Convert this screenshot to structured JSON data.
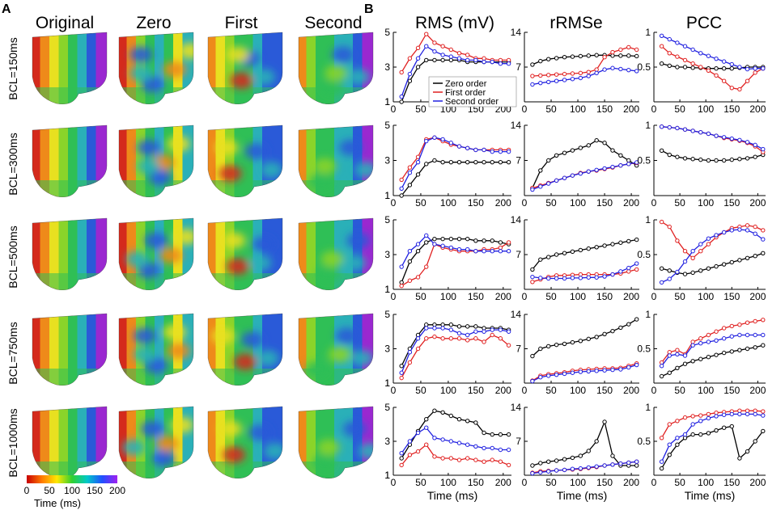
{
  "panel_labels": {
    "a": "A",
    "b": "B"
  },
  "map_columns": [
    "Original",
    "Zero",
    "First",
    "Second"
  ],
  "bcl_rows": [
    "BCL=150ms",
    "BCL=300ms",
    "BCL=500ms",
    "BCL=750ms",
    "BCL=1000ms"
  ],
  "colorbar": {
    "ticks": [
      "0",
      "50",
      "100",
      "150",
      "200"
    ],
    "title": "Time (ms)",
    "colors": [
      "#c80000",
      "#ff7a00",
      "#ffe800",
      "#30d030",
      "#00c8c8",
      "#2050ff",
      "#a020f0"
    ]
  },
  "map_palette": {
    "red": "#d42a1c",
    "orange": "#ee8a1a",
    "yellow": "#e8e020",
    "lime": "#8ad42a",
    "green": "#2fbf56",
    "cyan": "#2ab0b8",
    "blue": "#2a5ad8",
    "purple": "#9a28d0"
  },
  "legend": {
    "zero": "Zero order",
    "first": "First order",
    "second": "Second order"
  },
  "series_colors": {
    "zero": "#000000",
    "first": "#e02020",
    "second": "#2020e0"
  },
  "chart_data": {
    "type": "line",
    "column_titles": [
      "RMS (mV)",
      "rRMSe",
      "PCC"
    ],
    "xlabel": "Time (ms)",
    "x": [
      15,
      30,
      45,
      60,
      75,
      90,
      105,
      120,
      135,
      150,
      165,
      180,
      195,
      210
    ],
    "x_ticks": [
      0,
      50,
      100,
      150,
      200
    ],
    "xlim": [
      0,
      215
    ],
    "columns": [
      {
        "name": "RMS (mV)",
        "ylim": [
          1,
          5
        ],
        "yticks": [
          1,
          3,
          5
        ],
        "ytick_labels": [
          "1",
          "3",
          "5"
        ]
      },
      {
        "name": "rRMSe",
        "ylim": [
          0,
          14
        ],
        "yticks": [
          7,
          14
        ],
        "ytick_labels": [
          "7",
          "14"
        ]
      },
      {
        "name": "PCC",
        "ylim": [
          0,
          1
        ],
        "yticks": [
          0.5,
          1
        ],
        "ytick_labels": [
          "0.5",
          "1"
        ]
      }
    ],
    "rows": [
      {
        "bcl": "BCL=150ms",
        "rms": {
          "zero": [
            1.0,
            2.2,
            3.0,
            3.4,
            3.4,
            3.4,
            3.4,
            3.4,
            3.3,
            3.3,
            3.3,
            3.3,
            3.3,
            3.3
          ],
          "first": [
            2.7,
            3.5,
            4.1,
            4.9,
            4.4,
            4.2,
            4.0,
            3.8,
            3.7,
            3.5,
            3.5,
            3.4,
            3.4,
            3.4
          ],
          "second": [
            1.3,
            2.6,
            3.5,
            4.2,
            3.9,
            3.7,
            3.6,
            3.5,
            3.4,
            3.4,
            3.3,
            3.3,
            3.2,
            3.2
          ]
        },
        "rrmse": {
          "zero": [
            7.5,
            8.2,
            8.6,
            8.8,
            9.0,
            9.1,
            9.2,
            9.3,
            9.4,
            9.4,
            9.3,
            9.3,
            9.3,
            9.2
          ],
          "first": [
            5.2,
            5.3,
            5.4,
            5.5,
            5.6,
            5.7,
            5.8,
            6.0,
            6.5,
            9.0,
            10.0,
            10.5,
            11.0,
            10.5
          ],
          "second": [
            3.5,
            3.8,
            4.0,
            4.2,
            4.4,
            4.6,
            4.8,
            5.2,
            5.8,
            6.5,
            6.8,
            6.6,
            6.4,
            6.2
          ]
        },
        "pcc": {
          "zero": [
            0.55,
            0.52,
            0.5,
            0.5,
            0.49,
            0.49,
            0.48,
            0.48,
            0.48,
            0.48,
            0.49,
            0.5,
            0.5,
            0.5
          ],
          "first": [
            0.8,
            0.7,
            0.65,
            0.6,
            0.55,
            0.5,
            0.45,
            0.38,
            0.3,
            0.2,
            0.18,
            0.3,
            0.42,
            0.48
          ],
          "second": [
            0.95,
            0.9,
            0.85,
            0.8,
            0.75,
            0.7,
            0.66,
            0.62,
            0.58,
            0.54,
            0.5,
            0.47,
            0.48,
            0.48
          ]
        }
      },
      {
        "bcl": "BCL=300ms",
        "rms": {
          "zero": [
            1.0,
            1.6,
            2.2,
            2.8,
            3.0,
            2.9,
            2.9,
            2.9,
            2.9,
            2.9,
            2.9,
            2.9,
            2.9,
            2.9
          ],
          "first": [
            1.9,
            2.6,
            3.2,
            4.2,
            4.3,
            4.1,
            3.9,
            3.8,
            3.7,
            3.6,
            3.6,
            3.6,
            3.6,
            3.6
          ],
          "second": [
            1.4,
            2.3,
            2.9,
            4.1,
            4.3,
            4.2,
            4.0,
            3.8,
            3.7,
            3.6,
            3.6,
            3.5,
            3.5,
            3.5
          ]
        },
        "rrmse": {
          "zero": [
            1.5,
            5.0,
            7.0,
            8.0,
            8.5,
            9.0,
            9.5,
            10.0,
            11.0,
            10.5,
            9.0,
            8.0,
            7.0,
            6.0
          ],
          "first": [
            1.5,
            2.0,
            2.5,
            3.0,
            3.5,
            4.0,
            4.5,
            4.8,
            5.0,
            5.3,
            5.6,
            6.0,
            6.3,
            6.5
          ],
          "second": [
            1.2,
            1.8,
            2.4,
            3.0,
            3.5,
            4.0,
            4.4,
            4.8,
            5.1,
            5.4,
            5.7,
            6.0,
            6.3,
            6.6
          ]
        },
        "pcc": {
          "zero": [
            0.64,
            0.58,
            0.55,
            0.53,
            0.52,
            0.51,
            0.5,
            0.5,
            0.5,
            0.51,
            0.52,
            0.53,
            0.55,
            0.58
          ],
          "first": [
            0.98,
            0.97,
            0.96,
            0.94,
            0.92,
            0.9,
            0.88,
            0.85,
            0.82,
            0.8,
            0.78,
            0.75,
            0.7,
            0.62
          ],
          "second": [
            0.98,
            0.97,
            0.96,
            0.94,
            0.92,
            0.9,
            0.88,
            0.85,
            0.83,
            0.81,
            0.79,
            0.76,
            0.72,
            0.66
          ]
        }
      },
      {
        "bcl": "BCL=500ms",
        "rms": {
          "zero": [
            1.4,
            2.6,
            3.2,
            3.7,
            3.9,
            3.9,
            3.9,
            3.9,
            3.9,
            3.8,
            3.8,
            3.8,
            3.7,
            3.6
          ],
          "first": [
            1.2,
            1.5,
            1.7,
            2.3,
            3.6,
            3.4,
            3.3,
            3.2,
            3.2,
            3.2,
            3.3,
            3.3,
            3.4,
            3.7
          ],
          "second": [
            2.3,
            3.2,
            3.6,
            4.1,
            3.6,
            3.5,
            3.4,
            3.3,
            3.3,
            3.2,
            3.2,
            3.2,
            3.2,
            3.2
          ]
        },
        "rrmse": {
          "zero": [
            4.0,
            6.0,
            6.5,
            7.0,
            7.3,
            7.6,
            7.9,
            8.2,
            8.5,
            8.8,
            9.1,
            9.4,
            9.7,
            10.0
          ],
          "first": [
            1.5,
            2.0,
            2.5,
            2.8,
            2.8,
            2.9,
            3.0,
            3.0,
            3.0,
            3.0,
            3.0,
            3.2,
            3.6,
            4.0
          ],
          "second": [
            2.5,
            2.3,
            2.2,
            2.2,
            2.2,
            2.3,
            2.3,
            2.4,
            2.4,
            2.6,
            3.0,
            3.6,
            4.3,
            5.2
          ]
        },
        "pcc": {
          "zero": [
            0.3,
            0.27,
            0.24,
            0.22,
            0.24,
            0.27,
            0.3,
            0.33,
            0.36,
            0.39,
            0.42,
            0.45,
            0.48,
            0.52
          ],
          "first": [
            0.97,
            0.9,
            0.7,
            0.55,
            0.45,
            0.55,
            0.65,
            0.75,
            0.82,
            0.88,
            0.9,
            0.92,
            0.9,
            0.85
          ],
          "second": [
            0.1,
            0.15,
            0.25,
            0.4,
            0.55,
            0.65,
            0.73,
            0.78,
            0.82,
            0.85,
            0.86,
            0.85,
            0.8,
            0.72
          ]
        }
      },
      {
        "bcl": "BCL=750ms",
        "rms": {
          "zero": [
            2.0,
            3.0,
            3.8,
            4.4,
            4.4,
            4.4,
            4.4,
            4.3,
            4.3,
            4.3,
            4.2,
            4.2,
            4.2,
            4.1
          ],
          "first": [
            1.3,
            2.2,
            3.0,
            3.6,
            3.7,
            3.6,
            3.6,
            3.6,
            3.5,
            3.6,
            3.4,
            3.8,
            3.6,
            3.2
          ],
          "second": [
            1.6,
            2.8,
            3.6,
            4.2,
            4.2,
            4.2,
            4.1,
            3.9,
            3.8,
            4.0,
            4.0,
            4.1,
            4.1,
            4.0
          ]
        },
        "rrmse": {
          "zero": [
            5.5,
            7.0,
            7.5,
            7.8,
            8.0,
            8.3,
            8.6,
            9.0,
            9.4,
            10.0,
            10.6,
            11.3,
            12.0,
            13.0
          ],
          "first": [
            0.5,
            1.5,
            1.8,
            2.0,
            2.2,
            2.5,
            2.7,
            2.8,
            2.9,
            3.0,
            3.0,
            3.1,
            3.5,
            4.0
          ],
          "second": [
            0.4,
            1.2,
            1.5,
            1.7,
            1.9,
            2.1,
            2.3,
            2.4,
            2.5,
            2.6,
            2.7,
            2.8,
            3.2,
            3.7
          ]
        },
        "pcc": {
          "zero": [
            0.1,
            0.15,
            0.22,
            0.28,
            0.32,
            0.35,
            0.38,
            0.41,
            0.44,
            0.46,
            0.48,
            0.5,
            0.52,
            0.55
          ],
          "first": [
            0.3,
            0.45,
            0.48,
            0.42,
            0.6,
            0.65,
            0.7,
            0.75,
            0.8,
            0.83,
            0.85,
            0.88,
            0.9,
            0.92
          ],
          "second": [
            0.25,
            0.4,
            0.42,
            0.4,
            0.55,
            0.58,
            0.6,
            0.62,
            0.65,
            0.68,
            0.7,
            0.7,
            0.7,
            0.7
          ]
        }
      },
      {
        "bcl": "BCL=1000ms",
        "rms": {
          "zero": [
            2.0,
            2.8,
            3.6,
            4.3,
            4.8,
            4.7,
            4.5,
            4.3,
            4.2,
            4.1,
            3.5,
            3.4,
            3.4,
            3.4
          ],
          "first": [
            1.6,
            2.2,
            2.4,
            2.8,
            2.1,
            2.0,
            2.0,
            1.9,
            2.0,
            1.9,
            1.8,
            1.9,
            1.8,
            1.6
          ],
          "second": [
            2.3,
            3.0,
            3.5,
            3.8,
            3.2,
            3.1,
            3.0,
            2.9,
            2.8,
            2.7,
            2.6,
            2.6,
            2.5,
            2.5
          ]
        },
        "rrmse": {
          "zero": [
            2.0,
            2.5,
            2.8,
            3.0,
            3.3,
            3.6,
            4.0,
            5.0,
            7.0,
            11.0,
            4.0,
            2.0,
            2.0,
            2.0
          ],
          "first": [
            0.5,
            0.8,
            0.9,
            1.0,
            1.1,
            1.2,
            1.3,
            1.5,
            1.7,
            2.0,
            2.2,
            2.4,
            2.6,
            2.8
          ],
          "second": [
            0.4,
            0.6,
            0.8,
            1.0,
            1.1,
            1.3,
            1.4,
            1.6,
            1.8,
            2.0,
            2.2,
            2.4,
            2.6,
            2.8
          ]
        },
        "pcc": {
          "zero": [
            0.1,
            0.3,
            0.45,
            0.55,
            0.6,
            0.6,
            0.62,
            0.66,
            0.7,
            0.72,
            0.25,
            0.35,
            0.5,
            0.65
          ],
          "first": [
            0.55,
            0.75,
            0.8,
            0.85,
            0.87,
            0.88,
            0.9,
            0.92,
            0.93,
            0.94,
            0.95,
            0.95,
            0.95,
            0.94
          ],
          "second": [
            0.2,
            0.45,
            0.55,
            0.6,
            0.75,
            0.8,
            0.84,
            0.87,
            0.89,
            0.9,
            0.9,
            0.9,
            0.9,
            0.88
          ]
        }
      }
    ]
  }
}
